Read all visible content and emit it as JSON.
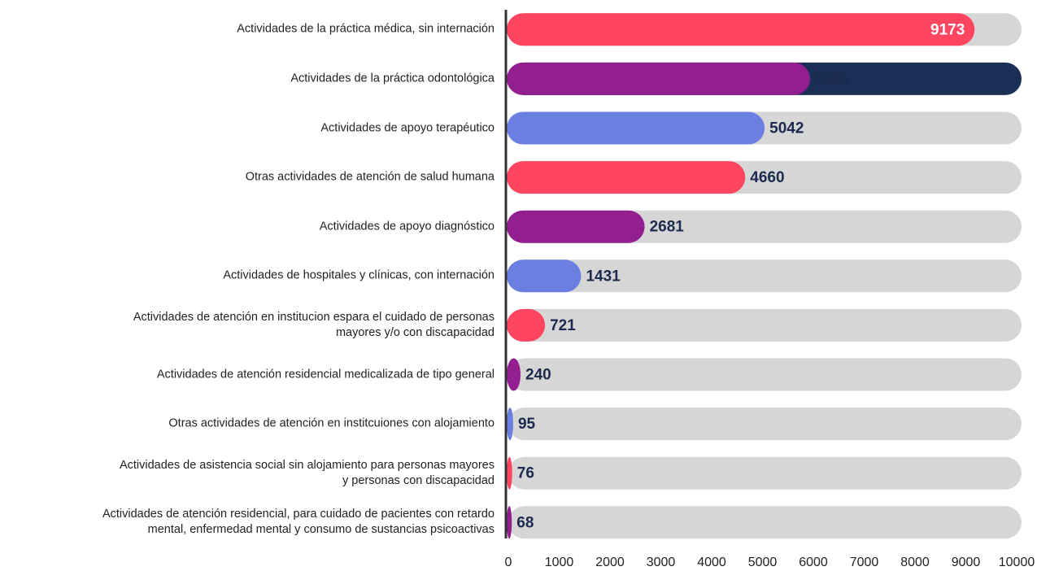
{
  "chart_data": {
    "type": "bar",
    "orientation": "horizontal",
    "categories": [
      "Actividades de la práctica médica, sin internación",
      "Actividades de la práctica odontológica",
      "Actividades de apoyo terapéutico",
      "Otras actividades de atención de salud humana",
      "Actividades de apoyo diagnóstico",
      "Actividades de hospitales y clínicas, con internación",
      "Actividades de atención en institucion espara el cuidado de personas\nmayores y/o con discapacidad",
      "Actividades de atención residencial medicalizada de tipo general",
      "Otras actividades de atención en institcuiones con alojamiento",
      "Actividades de asistencia social sin alojamiento para personas mayores\ny personas con discapacidad",
      "Actividades de atención residencial, para cuidado de pacientes con retardo\nmental, enfermedad mental y consumo de sustancias psicoactivas"
    ],
    "values": [
      9173,
      5936,
      5042,
      4660,
      2681,
      1431,
      721,
      240,
      95,
      76,
      68
    ],
    "colors": [
      "#ff4560",
      "#921e8f",
      "#6b7fe0"
    ],
    "track_color": "#d6d6d6",
    "highlight_track_color": "#1b2e55",
    "highlight": 1,
    "xlim": [
      0,
      10000
    ],
    "xticks": [
      0,
      1000,
      2000,
      3000,
      4000,
      5000,
      6000,
      7000,
      8000,
      9000,
      10000
    ]
  }
}
